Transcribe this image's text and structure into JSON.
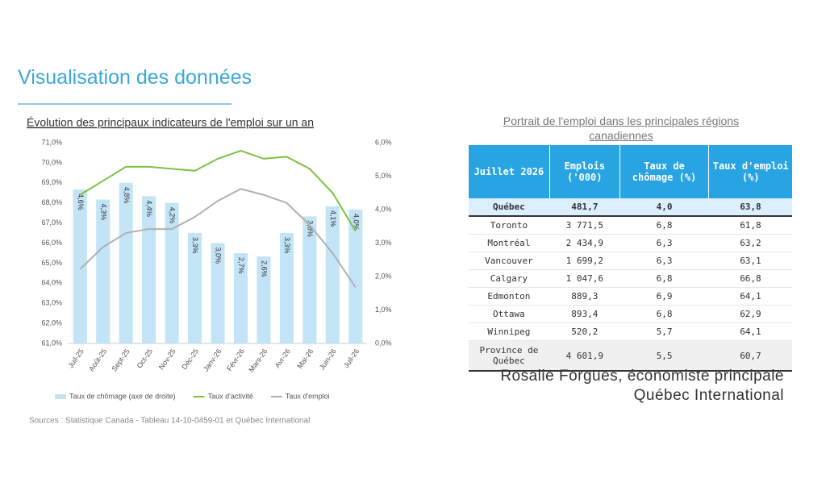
{
  "header": {
    "title": "Visualisation des données"
  },
  "chart_data": {
    "type": "bar-line",
    "title": "Évolution des principaux indicateurs de l'emploi sur un an",
    "categories": [
      "Juil-25",
      "Août-25",
      "Sept-25",
      "Oct-25",
      "Nov-25",
      "Déc-25",
      "Janv-26",
      "Févr-26",
      "Mars-26",
      "Avr-26",
      "Mai-26",
      "Juin-26",
      "Juil-26"
    ],
    "series": [
      {
        "name": "Taux de chômage (axe de droite)",
        "type": "bar",
        "axis": "y2",
        "color": "#c3e4f6",
        "values": [
          4.6,
          4.3,
          4.8,
          4.4,
          4.2,
          3.3,
          3.0,
          2.7,
          2.6,
          3.3,
          3.8,
          4.1,
          4.0
        ],
        "value_labels": [
          "4,6%",
          "4,3%",
          "4,8%",
          "4,4%",
          "4,2%",
          "3,3%",
          "3,0%",
          "2,7%",
          "2,6%",
          "3,3%",
          "3,8%",
          "4,1%",
          "4,0%"
        ]
      },
      {
        "name": "Taux d'activité",
        "type": "line",
        "color": "#7dc242",
        "values": [
          68.4,
          69.1,
          69.8,
          69.8,
          69.7,
          69.6,
          70.2,
          70.6,
          70.2,
          70.3,
          69.7,
          68.5,
          66.6
        ]
      },
      {
        "name": "Taux d'emploi",
        "type": "line",
        "color": "#b0b0b0",
        "values": [
          64.7,
          65.8,
          66.5,
          66.7,
          66.7,
          67.3,
          68.1,
          68.7,
          68.4,
          68.0,
          66.9,
          65.5,
          63.8
        ]
      }
    ],
    "ylim": [
      61,
      71
    ],
    "yticks": [
      {
        "value": 61,
        "label": "61,0%"
      },
      {
        "value": 62,
        "label": "62,0%"
      },
      {
        "value": 63,
        "label": "63,0%"
      },
      {
        "value": 64,
        "label": "64,0%"
      },
      {
        "value": 65,
        "label": "65,0%"
      },
      {
        "value": 66,
        "label": "66,0%"
      },
      {
        "value": 67,
        "label": "67,0%"
      },
      {
        "value": 68,
        "label": "68,0%"
      },
      {
        "value": 69,
        "label": "69,0%"
      },
      {
        "value": 70,
        "label": "70,0%"
      },
      {
        "value": 71,
        "label": "71,0%"
      }
    ],
    "y2lim": [
      0,
      6
    ],
    "y2ticks": [
      {
        "value": 0,
        "label": "0,0%"
      },
      {
        "value": 1,
        "label": "1,0%"
      },
      {
        "value": 2,
        "label": "2,0%"
      },
      {
        "value": 3,
        "label": "3,0%"
      },
      {
        "value": 4,
        "label": "4,0%"
      },
      {
        "value": 5,
        "label": "5,0%"
      },
      {
        "value": 6,
        "label": "6,0%"
      }
    ],
    "grid": false,
    "legend": "bottom",
    "source": "Sources : Statistique Canada - Tableau 14-10-0459-01 et Québec International"
  },
  "table": {
    "title": "Portrait de l'emploi dans les principales régions canadiennes",
    "header": [
      "Juillet 2026",
      "Emplois ('000)",
      "Taux de chômage (%)",
      "Taux d'emploi (%)"
    ],
    "rows": [
      [
        "Québec",
        "481,7",
        "4,0",
        "63,8"
      ],
      [
        "Toronto",
        "3 771,5",
        "6,8",
        "61,8"
      ],
      [
        "Montréal",
        "2 434,9",
        "6,3",
        "63,2"
      ],
      [
        "Vancouver",
        "1 699,2",
        "6,3",
        "63,1"
      ],
      [
        "Calgary",
        "1 047,6",
        "6,8",
        "66,8"
      ],
      [
        "Edmonton",
        "889,3",
        "6,9",
        "64,1"
      ],
      [
        "Ottawa",
        "893,4",
        "6,8",
        "62,9"
      ],
      [
        "Winnipeg",
        "520,2",
        "5,7",
        "64,1"
      ],
      [
        "Province de Québec",
        "4 601,9",
        "5,5",
        "60,7"
      ]
    ]
  },
  "footer": {
    "author": "Rosalie Forgues, économiste principale",
    "organization": "Québec International"
  }
}
